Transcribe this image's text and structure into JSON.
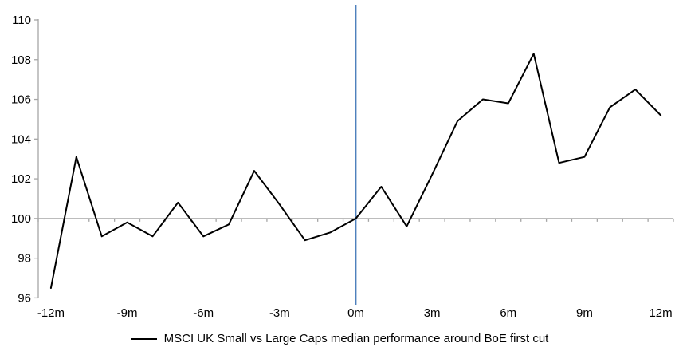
{
  "chart_data": {
    "type": "line",
    "x_months": [
      -12,
      -11,
      -10,
      -9,
      -8,
      -7,
      -6,
      -5,
      -4,
      -3,
      -2,
      -1,
      0,
      1,
      2,
      3,
      4,
      5,
      6,
      7,
      8,
      9,
      10,
      11,
      12
    ],
    "x_axis_tick_labels": [
      "-12m",
      "-9m",
      "-6m",
      "-3m",
      "0m",
      "3m",
      "6m",
      "9m",
      "12m"
    ],
    "x_labeled_months": [
      -12,
      -9,
      -6,
      -3,
      0,
      3,
      6,
      9,
      12
    ],
    "series": [
      {
        "name": "MSCI UK Small vs Large Caps median performance around BoE first cut",
        "values": [
          96.5,
          103.1,
          99.1,
          99.8,
          99.1,
          100.8,
          99.1,
          99.7,
          102.4,
          100.7,
          98.9,
          99.3,
          100.0,
          101.6,
          99.6,
          102.2,
          104.9,
          106.0,
          105.8,
          108.3,
          102.8,
          103.1,
          105.6,
          106.5,
          105.2
        ]
      }
    ],
    "ylim": [
      96,
      110
    ],
    "y_ticks": [
      96,
      98,
      100,
      102,
      104,
      106,
      108,
      110
    ],
    "baseline_value": 100,
    "event_line_month": 0,
    "legend_position": "bottom",
    "grid": "baseline-only",
    "colors": {
      "series_line": "#000000",
      "axis_gray": "#a6a6a6",
      "event_line_blue": "#4f81bd",
      "text": "#000000"
    }
  }
}
